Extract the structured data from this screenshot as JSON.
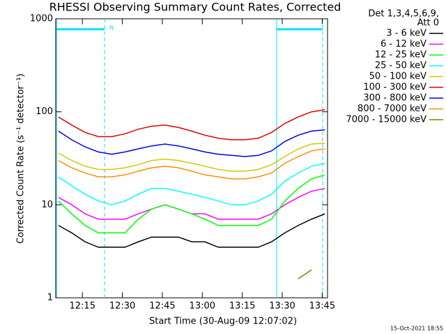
{
  "chart_data": {
    "type": "line",
    "title": "RHESSI Observing Summary Count Rates, Corrected",
    "xlabel": "Start Time (30-Aug-09 12:07:02)",
    "ylabel": "Corrected Count Rate (s⁻¹ detector⁻¹)",
    "legend_title": [
      "Det 1,3,4,5,6,9,",
      "Att 0"
    ],
    "legend": "right",
    "annotation": "N",
    "footer": "15-Oct-2021 18:55",
    "log_y": true,
    "xlim": [
      725,
      827
    ],
    "xticks": [
      {
        "value": 735,
        "label": "12:15"
      },
      {
        "value": 750,
        "label": "12:30"
      },
      {
        "value": 765,
        "label": "12:45"
      },
      {
        "value": 780,
        "label": "13:00"
      },
      {
        "value": 795,
        "label": "13:15"
      },
      {
        "value": 810,
        "label": "13:30"
      },
      {
        "value": 825,
        "label": "13:45"
      }
    ],
    "ylim": [
      1,
      1000
    ],
    "yticks": [
      1,
      10,
      100,
      1000
    ],
    "x": [
      726,
      731,
      736,
      741,
      746,
      751,
      756,
      761,
      766,
      771,
      776,
      781,
      786,
      791,
      796,
      801,
      806,
      811,
      816,
      821,
      826
    ],
    "series": [
      {
        "name": "3 - 6 keV",
        "color": "#000000",
        "values": [
          6,
          5,
          4,
          3.5,
          3.5,
          3.5,
          4,
          4.5,
          4.5,
          4.5,
          4,
          4,
          3.5,
          3.5,
          3.5,
          3.5,
          4,
          5,
          6,
          7,
          8
        ]
      },
      {
        "name": "6 - 12 keV",
        "color": "#ff00ff",
        "values": [
          12,
          10,
          8,
          7,
          7,
          7,
          8,
          9,
          10,
          9,
          8,
          8,
          7,
          7,
          7,
          7,
          8,
          10,
          12,
          14,
          15
        ]
      },
      {
        "name": "12 - 25 keV",
        "color": "#00ff00",
        "values": [
          11,
          8,
          6,
          5,
          5,
          5,
          7,
          9,
          10,
          9,
          8,
          7,
          6,
          6,
          6,
          6,
          7,
          11,
          15,
          19,
          21
        ]
      },
      {
        "name": "25 - 50 keV",
        "color": "#00ffff",
        "values": [
          20,
          16,
          13,
          11,
          10,
          11,
          13,
          15,
          15,
          14,
          13,
          12,
          11,
          10,
          10,
          11,
          13,
          18,
          22,
          26,
          28
        ]
      },
      {
        "name": "50 - 100 keV",
        "color": "#d4c800",
        "values": [
          36,
          30,
          26,
          24,
          24,
          25,
          27,
          30,
          31,
          30,
          28,
          26,
          24,
          23,
          23,
          24,
          27,
          33,
          40,
          45,
          46
        ]
      },
      {
        "name": "100 - 300 keV",
        "color": "#e00000",
        "values": [
          88,
          72,
          60,
          54,
          54,
          58,
          65,
          70,
          72,
          68,
          62,
          56,
          52,
          50,
          50,
          52,
          60,
          75,
          88,
          100,
          105
        ]
      },
      {
        "name": "300 - 800 keV",
        "color": "#0000e0",
        "values": [
          62,
          50,
          42,
          37,
          35,
          37,
          40,
          43,
          45,
          43,
          40,
          37,
          35,
          34,
          33,
          34,
          38,
          48,
          56,
          62,
          64
        ]
      },
      {
        "name": "800 - 7000 keV",
        "color": "#ff8c00",
        "values": [
          30,
          25,
          22,
          20,
          20,
          21,
          23,
          25,
          26,
          25,
          23,
          21,
          20,
          19,
          19,
          20,
          22,
          28,
          33,
          38,
          40
        ]
      },
      {
        "name": "7000 - 15000 keV",
        "color": "#808000",
        "values": [
          null,
          null,
          null,
          null,
          null,
          null,
          null,
          null,
          null,
          null,
          null,
          null,
          null,
          null,
          null,
          null,
          null,
          null,
          1.6,
          2,
          null
        ]
      }
    ]
  }
}
